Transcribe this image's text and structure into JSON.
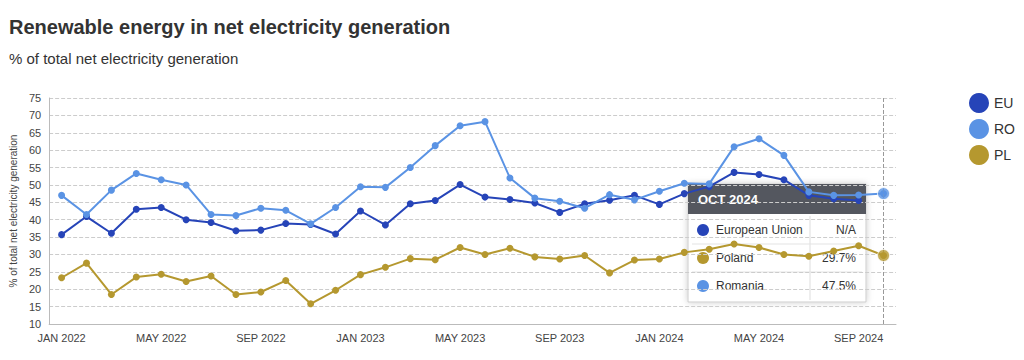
{
  "chart_data": {
    "type": "line",
    "title": "Renewable energy in net electricity generation",
    "subtitle": "% of total net electricity generation",
    "y_label": "% of total net electricity generation",
    "categories": [
      "JAN 2022",
      null,
      null,
      null,
      "MAY 2022",
      null,
      null,
      null,
      "SEP 2022",
      null,
      null,
      null,
      "JAN 2023",
      null,
      null,
      null,
      "MAY 2023",
      null,
      null,
      null,
      "SEP 2023",
      null,
      null,
      null,
      "JAN 2024",
      null,
      null,
      null,
      "MAY 2024",
      null,
      null,
      null,
      "SEP 2024",
      null
    ],
    "series": [
      {
        "name": "EU",
        "color": "#2644b8",
        "values": [
          35.7,
          40.9,
          36.1,
          43.0,
          43.5,
          40.0,
          39.2,
          36.8,
          37.0,
          38.9,
          38.6,
          35.9,
          42.5,
          38.5,
          44.6,
          45.5,
          50.1,
          46.5,
          45.8,
          44.8,
          42.1,
          44.6,
          45.6,
          47.0,
          44.4,
          47.5,
          49.5,
          53.6,
          53.0,
          51.5,
          47.0,
          46.0,
          45.5,
          null
        ]
      },
      {
        "name": "RO",
        "color": "#5a93e4",
        "values": [
          47.0,
          41.5,
          48.5,
          53.3,
          51.5,
          50.0,
          41.5,
          41.2,
          43.3,
          42.7,
          38.8,
          43.5,
          49.5,
          49.3,
          55.0,
          61.3,
          67.0,
          68.2,
          52.0,
          46.2,
          45.3,
          43.3,
          47.2,
          45.7,
          48.2,
          50.5,
          50.3,
          61.0,
          63.3,
          58.5,
          48.0,
          47.0,
          47.1,
          47.5
        ]
      },
      {
        "name": "PL",
        "color": "#b5982f",
        "values": [
          23.3,
          27.5,
          18.5,
          23.5,
          24.3,
          22.2,
          23.8,
          18.5,
          19.2,
          22.5,
          15.8,
          19.7,
          24.2,
          26.3,
          28.8,
          28.5,
          32.0,
          30.0,
          31.8,
          29.3,
          28.7,
          29.7,
          24.7,
          28.4,
          28.7,
          30.6,
          31.5,
          33.0,
          32.0,
          30.0,
          29.5,
          31.0,
          32.5,
          29.7
        ]
      }
    ],
    "ylim": [
      10,
      75
    ],
    "yticks": [
      10,
      15,
      20,
      25,
      30,
      35,
      40,
      45,
      50,
      55,
      60,
      65,
      70,
      75
    ],
    "grid": true,
    "legend": "right",
    "marker": "circle",
    "line_style": "solid",
    "annotations": [
      {
        "type": "tooltip",
        "title": "OCT 2024",
        "rows": [
          {
            "name": "European Union",
            "color": "#2644b8",
            "value": null,
            "label": "N/A"
          },
          {
            "name": "Poland",
            "color": "#b5982f",
            "value": 29.7,
            "label": "29.7%"
          },
          {
            "name": "Romania",
            "color": "#5a93e4",
            "value": 47.5,
            "label": "47.5%"
          }
        ]
      }
    ]
  }
}
